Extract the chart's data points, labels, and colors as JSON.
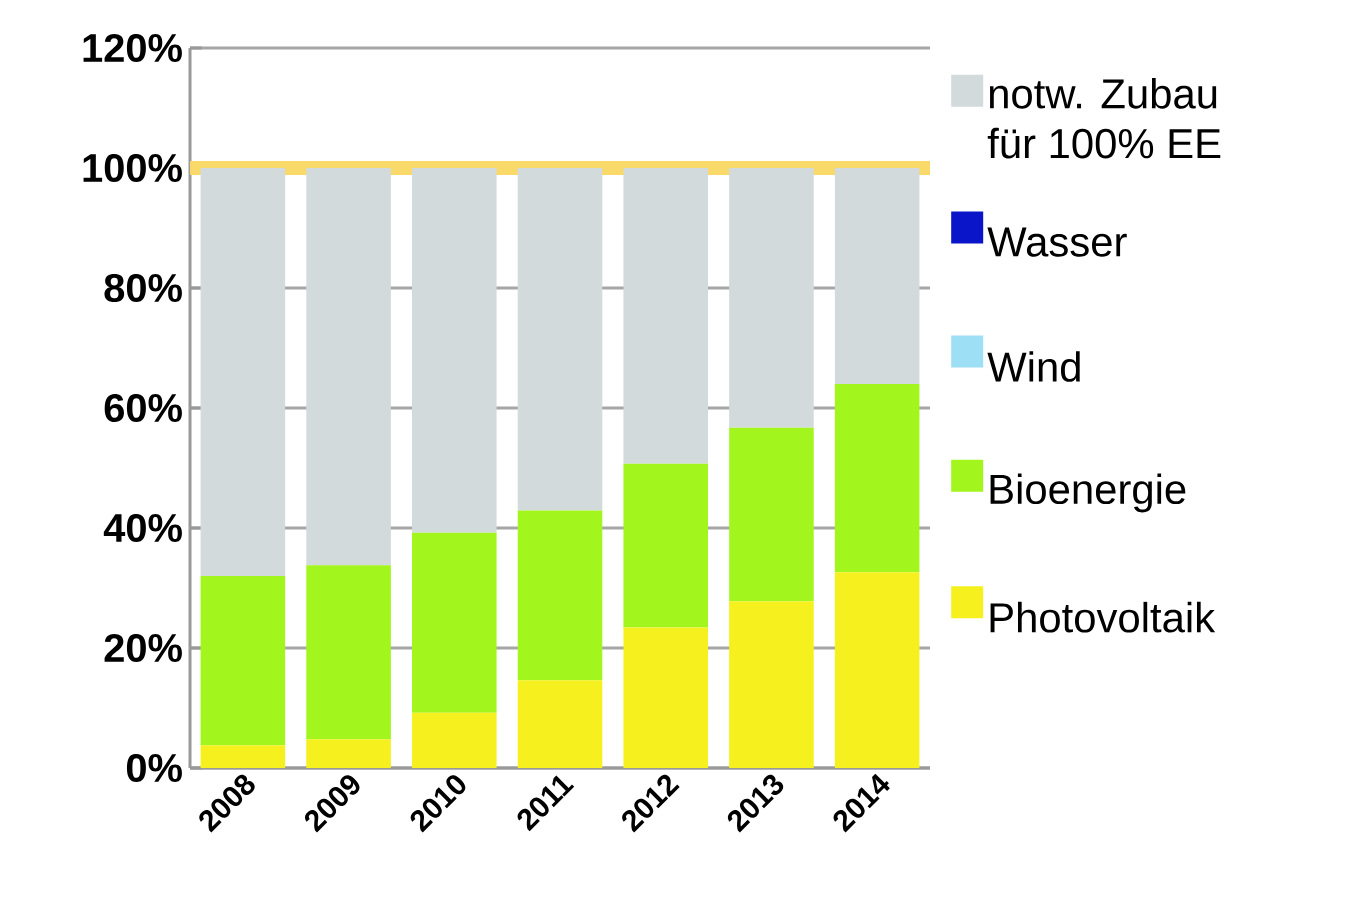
{
  "chart_data": {
    "type": "bar",
    "stacked": true,
    "categories": [
      "2008",
      "2009",
      "2010",
      "2011",
      "2012",
      "2013",
      "2014"
    ],
    "series": [
      {
        "name": "Photovoltaik",
        "color": "#f5f01e",
        "values": [
          3.8,
          4.8,
          9.2,
          14.6,
          23.4,
          27.8,
          32.6
        ]
      },
      {
        "name": "Bioenergie",
        "color": "#a3f51e",
        "values": [
          28.2,
          29.0,
          30.0,
          28.3,
          27.3,
          28.9,
          31.4
        ]
      },
      {
        "name": "Wind",
        "color": "#9ddff5",
        "values": [
          0,
          0,
          0,
          0,
          0,
          0,
          0
        ]
      },
      {
        "name": "Wasser",
        "color": "#0a14c8",
        "values": [
          0,
          0,
          0,
          0,
          0,
          0,
          0
        ]
      },
      {
        "name": "notw. Zubau für 100% EE",
        "color": "#d2dadb",
        "values": [
          68.0,
          66.2,
          60.8,
          57.1,
          49.3,
          43.3,
          36.0
        ]
      }
    ],
    "ylim": [
      0,
      120
    ],
    "yticks": [
      {
        "value": 0,
        "label": "0%"
      },
      {
        "value": 20,
        "label": "20%"
      },
      {
        "value": 40,
        "label": "40%"
      },
      {
        "value": 60,
        "label": "60%"
      },
      {
        "value": 80,
        "label": "80%"
      },
      {
        "value": 100,
        "label": "100%"
      },
      {
        "value": 120,
        "label": "120%"
      }
    ],
    "ref_lines": [
      {
        "axis": "y",
        "value": 100,
        "color": "#f9d96a"
      }
    ],
    "grid": "y",
    "legend": "right"
  }
}
